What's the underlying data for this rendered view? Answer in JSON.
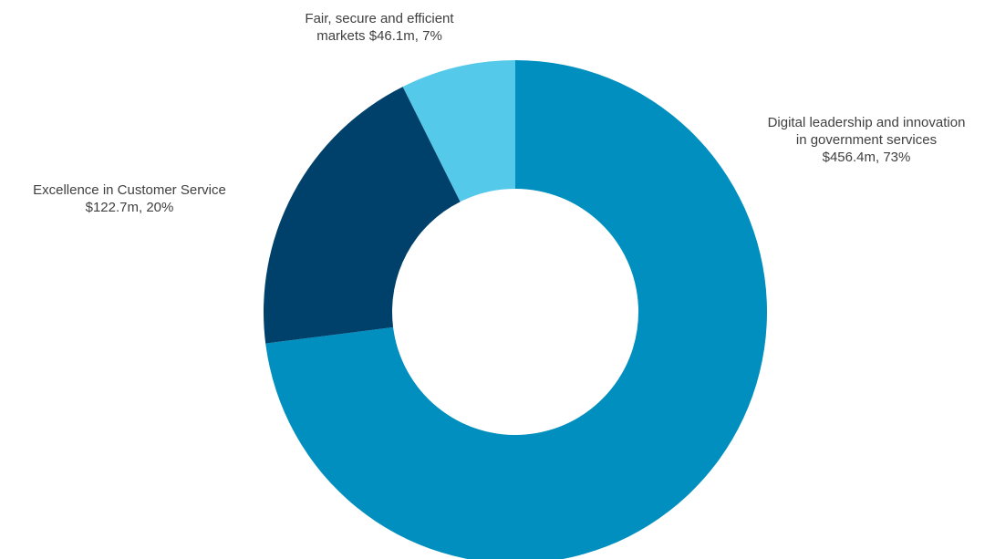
{
  "chart_data": {
    "type": "pie",
    "donut": true,
    "title": "",
    "legend": "none",
    "slices": [
      {
        "name": "Digital leadership and innovation in government services",
        "value": 456.4,
        "percent": 73,
        "label_lines": [
          "Digital leadership and innovation",
          "in government services",
          "$456.4m, 73%"
        ],
        "color": "#008FBE"
      },
      {
        "name": "Excellence in Customer Service",
        "value": 122.7,
        "percent": 20,
        "label_lines": [
          "Excellence in Customer Service",
          "$122.7m, 20%"
        ],
        "color": "#00416C"
      },
      {
        "name": "Fair, secure and efficient markets",
        "value": 46.1,
        "percent": 7,
        "label_lines": [
          "Fair, secure and efficient",
          "markets $46.1m, 7%"
        ],
        "color": "#55C9E9"
      }
    ]
  }
}
